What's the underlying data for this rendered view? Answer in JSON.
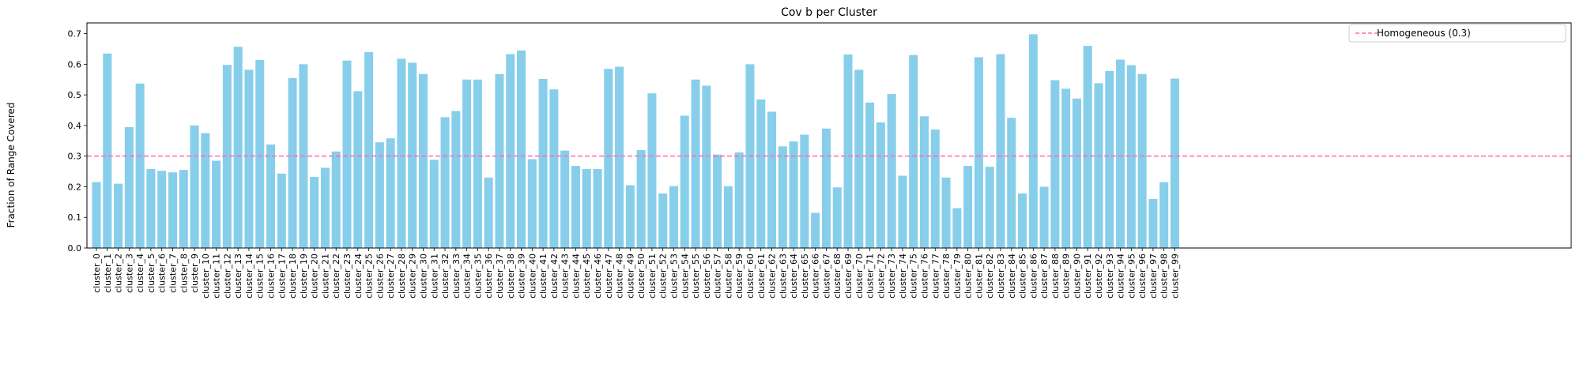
{
  "chart_data": {
    "type": "bar",
    "title": "Cov b per Cluster",
    "xlabel": "",
    "ylabel": "Fraction of Range Covered",
    "ylim": [
      0,
      0.735
    ],
    "yticks": [
      0.0,
      0.1,
      0.2,
      0.3,
      0.4,
      0.5,
      0.6,
      0.7
    ],
    "grid": false,
    "legend": {
      "placement": "top-right",
      "entries": [
        "Homogeneous (0.3)"
      ]
    },
    "reference_line": {
      "value": 0.3,
      "label": "Homogeneous (0.3)",
      "style": "dashed",
      "color": "#ff69b4"
    },
    "bar_color": "#87ceeb",
    "categories": [
      "cluster_0",
      "cluster_1",
      "cluster_2",
      "cluster_3",
      "cluster_4",
      "cluster_5",
      "cluster_6",
      "cluster_7",
      "cluster_8",
      "cluster_9",
      "cluster_10",
      "cluster_11",
      "cluster_12",
      "cluster_13",
      "cluster_14",
      "cluster_15",
      "cluster_16",
      "cluster_17",
      "cluster_18",
      "cluster_19",
      "cluster_20",
      "cluster_21",
      "cluster_22",
      "cluster_23",
      "cluster_24",
      "cluster_25",
      "cluster_26",
      "cluster_27",
      "cluster_28",
      "cluster_29",
      "cluster_30",
      "cluster_31",
      "cluster_32",
      "cluster_33",
      "cluster_34",
      "cluster_35",
      "cluster_36",
      "cluster_37",
      "cluster_38",
      "cluster_39",
      "cluster_40",
      "cluster_41",
      "cluster_42",
      "cluster_43",
      "cluster_44",
      "cluster_45",
      "cluster_46",
      "cluster_47",
      "cluster_48",
      "cluster_49",
      "cluster_50",
      "cluster_51",
      "cluster_52",
      "cluster_53",
      "cluster_54",
      "cluster_55",
      "cluster_56",
      "cluster_57",
      "cluster_58",
      "cluster_59",
      "cluster_60",
      "cluster_61",
      "cluster_62",
      "cluster_63",
      "cluster_64",
      "cluster_65",
      "cluster_66",
      "cluster_67",
      "cluster_68",
      "cluster_69",
      "cluster_70",
      "cluster_71",
      "cluster_72",
      "cluster_73",
      "cluster_74",
      "cluster_75",
      "cluster_76",
      "cluster_77",
      "cluster_78",
      "cluster_79",
      "cluster_80",
      "cluster_81",
      "cluster_82",
      "cluster_83",
      "cluster_84",
      "cluster_85",
      "cluster_86",
      "cluster_87",
      "cluster_88",
      "cluster_89",
      "cluster_90",
      "cluster_91",
      "cluster_92",
      "cluster_93",
      "cluster_94",
      "cluster_95",
      "cluster_96",
      "cluster_97",
      "cluster_98",
      "cluster_99"
    ],
    "values": [
      0.215,
      0.635,
      0.21,
      0.395,
      0.537,
      0.258,
      0.252,
      0.247,
      0.255,
      0.4,
      0.375,
      0.285,
      0.598,
      0.657,
      0.582,
      0.614,
      0.338,
      0.243,
      0.555,
      0.6,
      0.232,
      0.262,
      0.315,
      0.612,
      0.512,
      0.64,
      0.345,
      0.358,
      0.618,
      0.605,
      0.568,
      0.288,
      0.427,
      0.447,
      0.55,
      0.55,
      0.23,
      0.568,
      0.633,
      0.645,
      0.29,
      0.552,
      0.518,
      0.318,
      0.268,
      0.258,
      0.258,
      0.585,
      0.592,
      0.205,
      0.32,
      0.505,
      0.178,
      0.202,
      0.432,
      0.55,
      0.53,
      0.305,
      0.202,
      0.312,
      0.6,
      0.485,
      0.445,
      0.332,
      0.348,
      0.37,
      0.115,
      0.39,
      0.198,
      0.632,
      0.582,
      0.475,
      0.41,
      0.503,
      0.236,
      0.63,
      0.43,
      0.387,
      0.23,
      0.13,
      0.268,
      0.623,
      0.265,
      0.633,
      0.425,
      0.178,
      0.698,
      0.2,
      0.548,
      0.52,
      0.488,
      0.66,
      0.538,
      0.578,
      0.615,
      0.597,
      0.568,
      0.16,
      0.215,
      0.553
    ]
  }
}
